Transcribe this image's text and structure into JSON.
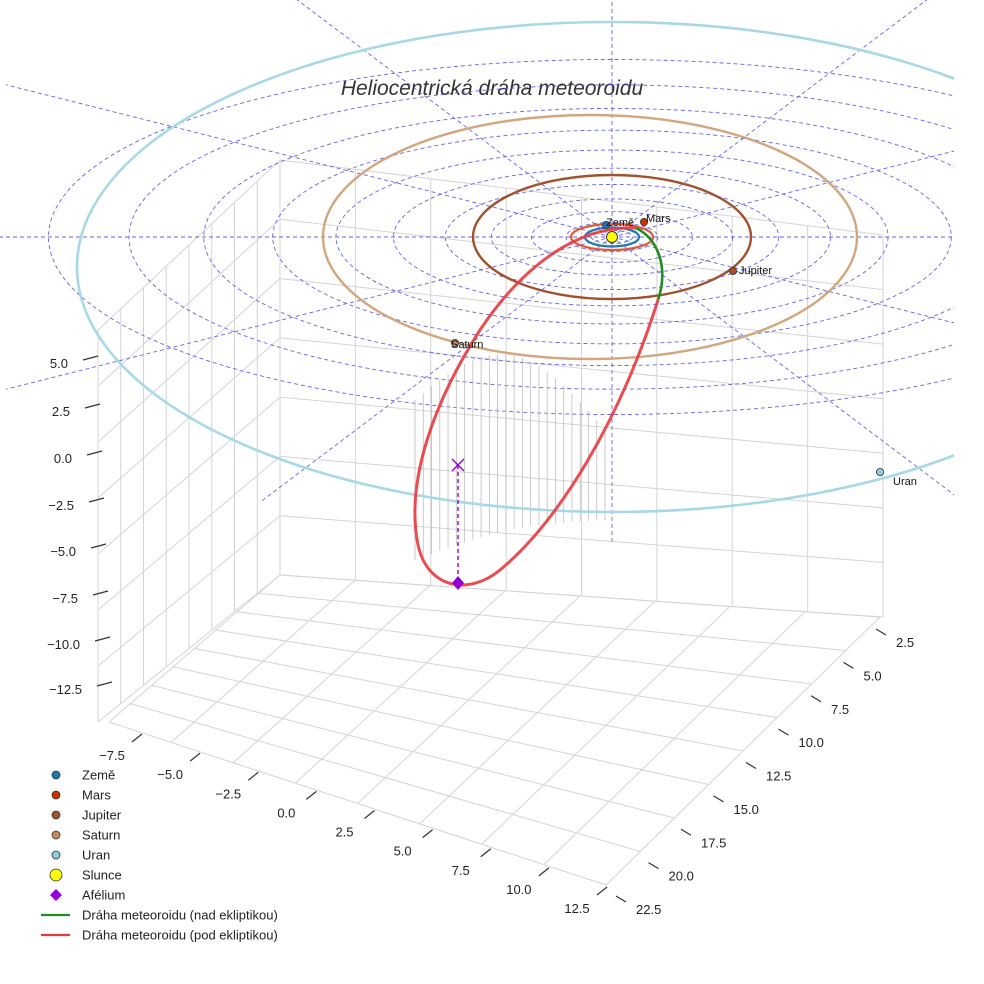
{
  "chart_data": {
    "type": "line",
    "title": "Heliocentrická dráha meteoroidu",
    "projection": "3d",
    "axes": {
      "x": {
        "range": [
          -7.5,
          12.5
        ],
        "ticks": [
          "−7.5",
          "−5.0",
          "−2.5",
          "0.0",
          "2.5",
          "5.0",
          "7.5",
          "10.0",
          "12.5"
        ]
      },
      "y": {
        "range": [
          2.5,
          22.5
        ],
        "ticks": [
          "2.5",
          "5.0",
          "7.5",
          "10.0",
          "12.5",
          "15.0",
          "17.5",
          "20.0",
          "22.5"
        ]
      },
      "z": {
        "range": [
          -12.5,
          5.0
        ],
        "ticks": [
          "5.0",
          "2.5",
          "0.0",
          "−2.5",
          "−5.0",
          "−7.5",
          "−10.0",
          "−12.5"
        ]
      }
    },
    "grid": true,
    "polar_grid_on_ecliptic": true,
    "legend_placement": "bottom-left",
    "planets": [
      {
        "name": "Země",
        "label": "Země",
        "color": "#1f77b4",
        "orbit_color": "#1f77b4"
      },
      {
        "name": "Mars",
        "label": "Mars",
        "color": "#cc3300",
        "orbit_color": "#e05a3a"
      },
      {
        "name": "Jupiter",
        "label": "Jupiter",
        "color": "#a0522d",
        "orbit_color": "#a0522d"
      },
      {
        "name": "Saturn",
        "label": "Saturn",
        "color": "#c48a5f",
        "orbit_color": "#d2a67e"
      },
      {
        "name": "Uran",
        "label": "Uran",
        "color": "#8ecde0",
        "orbit_color": "#a8d8e6"
      }
    ],
    "sun": {
      "name": "Slunce",
      "color": "#ffff00"
    },
    "aphelion": {
      "name": "Afélium",
      "color": "#9400d3"
    },
    "meteoroid_path": [
      {
        "name": "Dráha meteoroidu (nad ekliptikou)",
        "color": "#228b22"
      },
      {
        "name": "Dráha meteoroidu (pod ekliptikou)",
        "color": "#e8383d"
      }
    ],
    "legend": [
      {
        "label": "Země",
        "marker": "circle",
        "color": "#1f77b4"
      },
      {
        "label": "Mars",
        "marker": "circle",
        "color": "#cc3300"
      },
      {
        "label": "Jupiter",
        "marker": "circle",
        "color": "#a0522d"
      },
      {
        "label": "Saturn",
        "marker": "circle",
        "color": "#c48a5f"
      },
      {
        "label": "Uran",
        "marker": "circle",
        "color": "#8ecde0"
      },
      {
        "label": "Slunce",
        "marker": "big-circle",
        "color": "#ffff00"
      },
      {
        "label": "Afélium",
        "marker": "diamond",
        "color": "#9400d3"
      },
      {
        "label": "Dráha meteoroidu (nad ekliptikou)",
        "marker": "line",
        "color": "#228b22"
      },
      {
        "label": "Dráha meteoroidu (pod ekliptikou)",
        "marker": "line",
        "color": "#e8383d"
      }
    ]
  }
}
